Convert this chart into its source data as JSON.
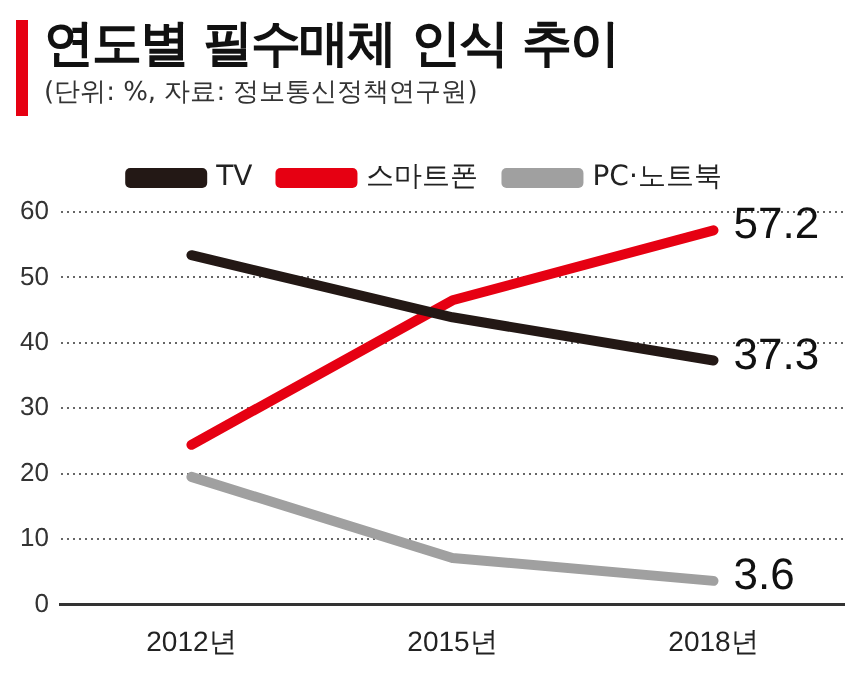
{
  "chart_data": {
    "type": "line",
    "title": "연도별 필수매체 인식 추이",
    "subtitle": "(단위: %, 자료: 정보통신정책연구원)",
    "categories": [
      "2012년",
      "2015년",
      "2018년"
    ],
    "series": [
      {
        "name": "TV",
        "color": "#231815",
        "values": [
          53.4,
          43.9,
          37.3
        ],
        "value_labels": [
          null,
          null,
          "37.3"
        ]
      },
      {
        "name": "스마트폰",
        "color": "#e60012",
        "values": [
          24.4,
          46.5,
          57.2
        ],
        "value_labels": [
          null,
          null,
          "57.2"
        ]
      },
      {
        "name": "PC·노트북",
        "color": "#a0a0a0",
        "values": [
          19.5,
          7.1,
          3.6
        ],
        "value_labels": [
          null,
          null,
          "3.6"
        ]
      }
    ],
    "ylim": [
      0,
      60
    ],
    "yticks": [
      0,
      10,
      20,
      30,
      40,
      50,
      60
    ],
    "grid": "y",
    "legend": "top",
    "marker": "none",
    "line_style": "solid"
  }
}
